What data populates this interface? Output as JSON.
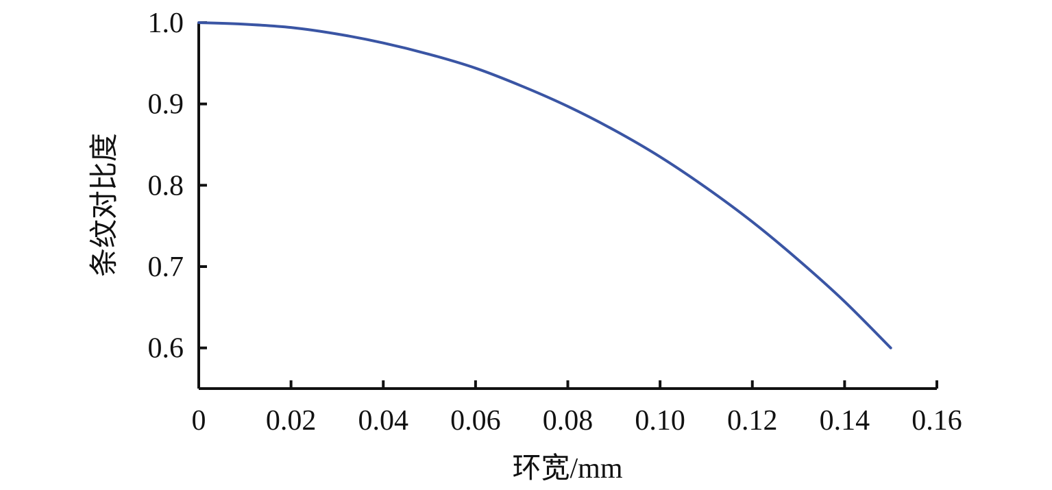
{
  "chart_data": {
    "type": "line",
    "xlabel": "环宽/mm",
    "ylabel": "条纹对比度",
    "xlim": [
      0,
      0.16
    ],
    "ylim": [
      0.55,
      1.0
    ],
    "x_ticks": [
      0,
      0.02,
      0.04,
      0.06,
      0.08,
      0.1,
      0.12,
      0.14,
      0.16
    ],
    "x_tick_labels": [
      "0",
      "0.02",
      "0.04",
      "0.06",
      "0.08",
      "0.10",
      "0.12",
      "0.14",
      "0.16"
    ],
    "y_ticks": [
      0.6,
      0.7,
      0.8,
      0.9,
      1.0
    ],
    "y_tick_labels": [
      "0.6",
      "0.7",
      "0.8",
      "0.9",
      "1.0"
    ],
    "grid": false,
    "series": [
      {
        "color": "#3a55a4",
        "x": [
          0,
          0.01,
          0.02,
          0.03,
          0.04,
          0.05,
          0.06,
          0.07,
          0.08,
          0.09,
          0.1,
          0.11,
          0.12,
          0.13,
          0.14,
          0.15
        ],
        "y": [
          1.0,
          0.998,
          0.994,
          0.986,
          0.975,
          0.961,
          0.944,
          0.922,
          0.897,
          0.868,
          0.835,
          0.797,
          0.755,
          0.708,
          0.657,
          0.6
        ]
      }
    ]
  }
}
